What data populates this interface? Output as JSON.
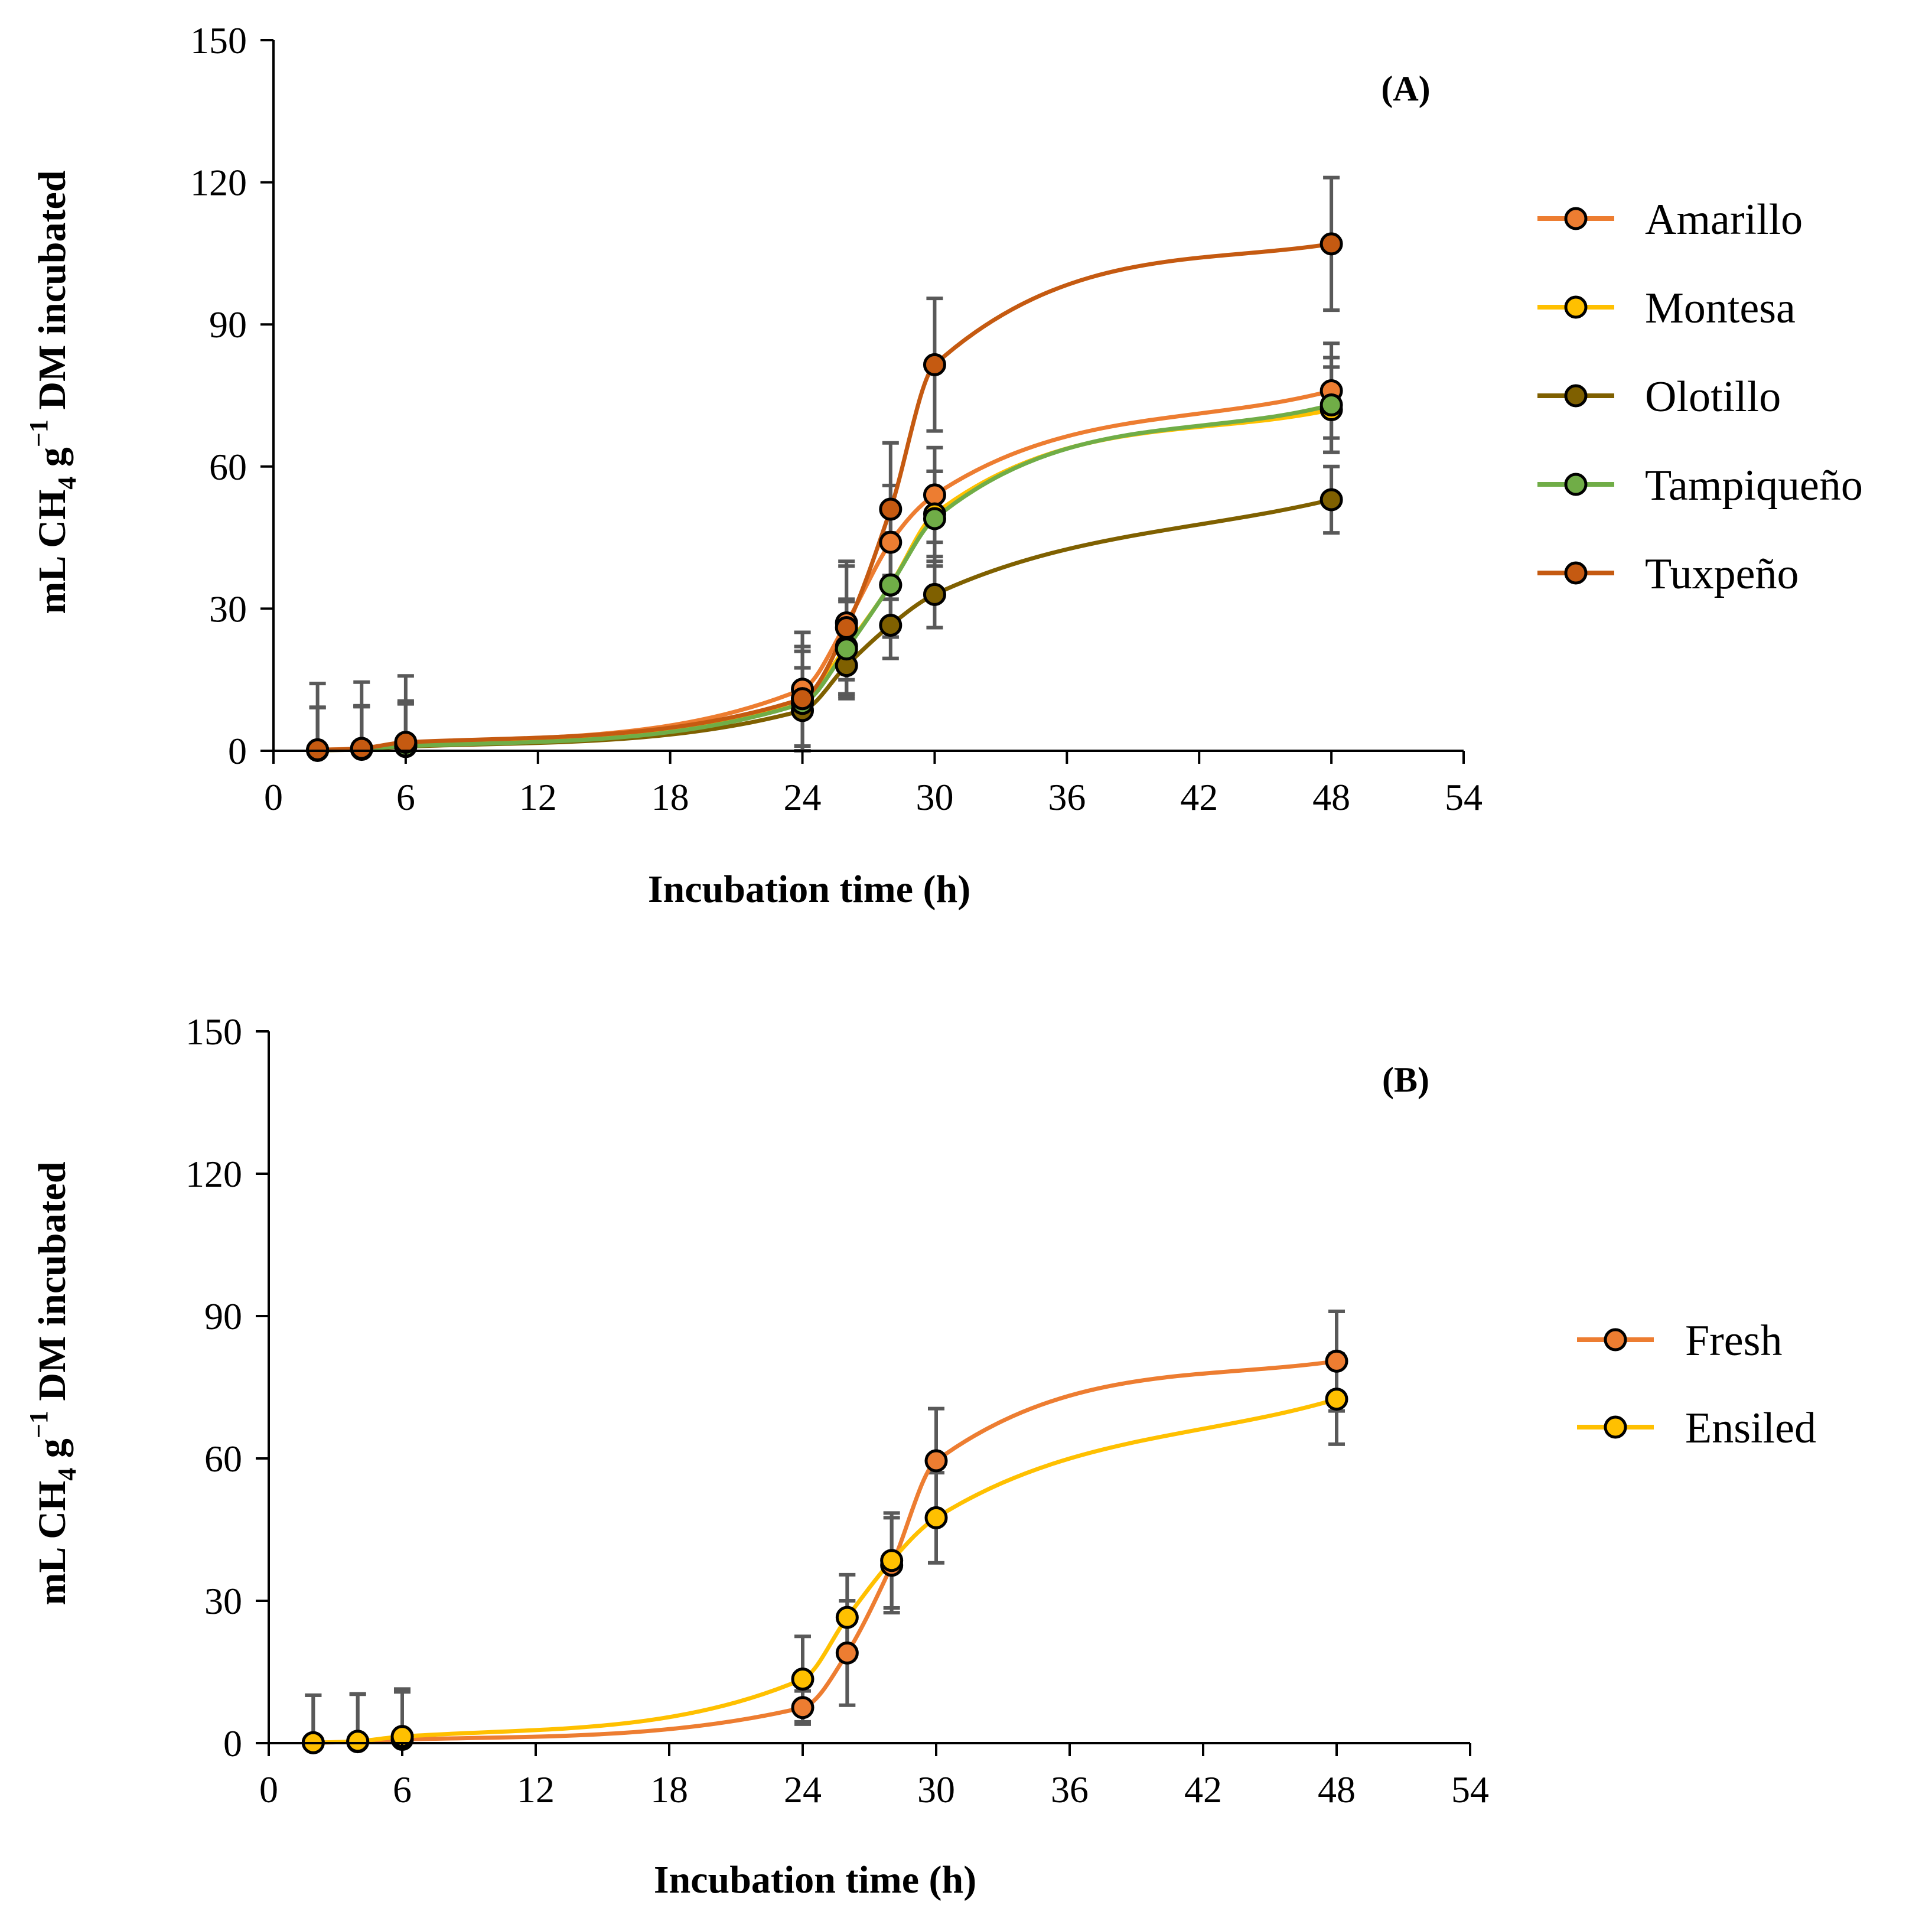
{
  "chart_data": [
    {
      "type": "line",
      "panel": "A",
      "panel_label": "(A)",
      "xlabel": "Incubation time (h)",
      "ylabel_parts": [
        "mL CH",
        "4",
        " g",
        "−1",
        " DM incubated"
      ],
      "xlim": [
        0,
        54
      ],
      "ylim": [
        0,
        150
      ],
      "xticks": [
        0,
        6,
        12,
        18,
        24,
        30,
        36,
        42,
        48,
        54
      ],
      "yticks": [
        0,
        30,
        60,
        90,
        120,
        150
      ],
      "x": [
        2,
        4,
        6,
        24,
        26,
        28,
        30,
        48
      ],
      "series": [
        {
          "name": "Amarillo",
          "color": "#ed7d31",
          "values": [
            0.2,
            0.5,
            1.5,
            13,
            27,
            44,
            54,
            76
          ],
          "errors": [
            9,
            9,
            9,
            12,
            12,
            12,
            10,
            10
          ]
        },
        {
          "name": "Montesa",
          "color": "#ffc000",
          "values": [
            0.1,
            0.4,
            1.2,
            11,
            22,
            35,
            50,
            72
          ],
          "errors": [
            9,
            9,
            9,
            11,
            10,
            11,
            9,
            9
          ]
        },
        {
          "name": "Olotillo",
          "color": "#7f6000",
          "values": [
            0.1,
            0.3,
            0.9,
            8.5,
            18,
            26.5,
            33,
            53
          ],
          "errors": [
            9,
            9,
            9,
            9,
            7,
            7,
            7,
            7
          ]
        },
        {
          "name": "Tampiqueño",
          "color": "#70ad47",
          "values": [
            0.1,
            0.4,
            1.0,
            10,
            21.5,
            35,
            49,
            73
          ],
          "errors": [
            9,
            9,
            9,
            11,
            10,
            11,
            10,
            10
          ]
        },
        {
          "name": "Tuxpeño",
          "color": "#c55a11",
          "values": [
            0.2,
            0.5,
            1.8,
            11,
            26,
            51,
            81.5,
            107
          ],
          "errors": [
            14,
            14,
            14,
            14,
            14,
            14,
            14,
            14
          ]
        }
      ]
    },
    {
      "type": "line",
      "panel": "B",
      "panel_label": "(B)",
      "xlabel": "Incubation time (h)",
      "ylabel_parts": [
        "mL CH",
        "4",
        " g",
        "−1",
        " DM incubated"
      ],
      "xlim": [
        0,
        54
      ],
      "ylim": [
        0,
        150
      ],
      "xticks": [
        0,
        6,
        12,
        18,
        24,
        30,
        36,
        42,
        48,
        54
      ],
      "yticks": [
        0,
        30,
        60,
        90,
        120,
        150
      ],
      "x": [
        2,
        4,
        6,
        24,
        26,
        28,
        30,
        48
      ],
      "series": [
        {
          "name": "Fresh",
          "color": "#ed7d31",
          "values": [
            0.1,
            0.3,
            0.8,
            7.5,
            19,
            37.5,
            59.5,
            80.5
          ],
          "errors": [
            10,
            10,
            10,
            3.5,
            11,
            10,
            11,
            10.5
          ]
        },
        {
          "name": "Ensiled",
          "color": "#ffc000",
          "values": [
            0.1,
            0.4,
            1.4,
            13.5,
            26.5,
            38.5,
            47.5,
            72.5
          ],
          "errors": [
            10,
            10,
            10,
            9,
            9,
            10,
            9.5,
            9.5
          ]
        }
      ]
    }
  ]
}
